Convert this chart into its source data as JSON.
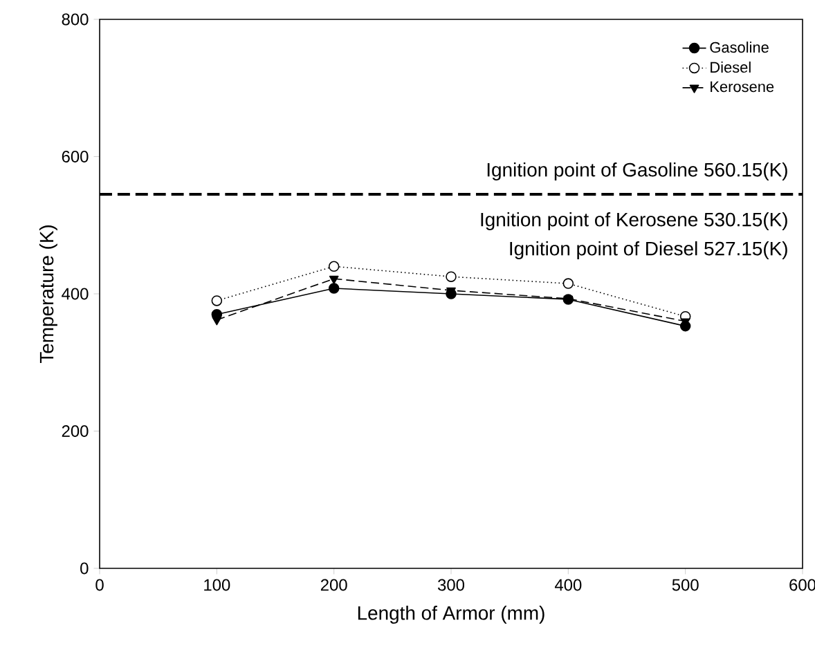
{
  "chart_data": {
    "type": "line",
    "xlabel": "Length of Armor (mm)",
    "ylabel": "Temperature (K)",
    "x": [
      100,
      200,
      300,
      400,
      500
    ],
    "series": [
      {
        "name": "Gasoline",
        "color": "#000000",
        "marker": "circle",
        "line_style": "solid",
        "values": [
          370,
          408,
          400,
          392,
          353
        ]
      },
      {
        "name": "Diesel",
        "color": "#000000",
        "marker": "circle",
        "line_style": "dotted",
        "values": [
          390,
          440,
          425,
          415,
          367
        ]
      },
      {
        "name": "Kerosene",
        "color": "#000000",
        "marker": "triangle",
        "line_style": "dashed",
        "values": [
          362,
          422,
          405,
          393,
          360
        ]
      }
    ],
    "xlim": [
      0,
      600
    ],
    "ylim": [
      0,
      800
    ],
    "xticks": [
      0,
      100,
      200,
      300,
      400,
      500,
      600
    ],
    "yticks": [
      0,
      200,
      400,
      600,
      800
    ],
    "ref_lines": [
      {
        "axis": "y",
        "value": 545,
        "line_style": "dashed",
        "color": "#000000"
      }
    ],
    "annotations": [
      "Ignition point of Gasoline   560.15(K)",
      "Ignition point of Kerosene   530.15(K)",
      "Ignition point of Diesel   527.15(K)"
    ],
    "grid": false,
    "legend": "top right"
  }
}
